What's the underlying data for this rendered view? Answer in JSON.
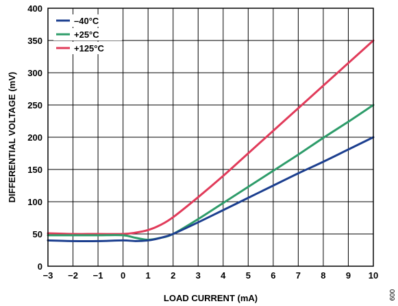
{
  "chart_data": {
    "type": "line",
    "xlabel": "LOAD CURRENT (mA)",
    "ylabel": "DIFFERENTIAL VOLTAGE (mV)",
    "xlim": [
      -3,
      10
    ],
    "ylim": [
      0,
      400
    ],
    "x_ticks": [
      -3,
      -2,
      -1,
      0,
      1,
      2,
      3,
      4,
      5,
      6,
      7,
      8,
      9,
      10
    ],
    "x_tick_labels": [
      "−3",
      "−2",
      "−1",
      "0",
      "1",
      "2",
      "3",
      "4",
      "5",
      "6",
      "7",
      "8",
      "9",
      "10"
    ],
    "y_ticks": [
      0,
      50,
      100,
      150,
      200,
      250,
      300,
      350,
      400
    ],
    "grid": true,
    "legend_position": "top-left",
    "figure_id": "009",
    "series": [
      {
        "name": "–40°C",
        "color": "#1c3f8f",
        "x": [
          -3,
          -2,
          -1,
          0,
          0.5,
          1,
          1.3,
          1.6,
          2,
          3,
          4,
          5,
          6,
          7,
          8,
          9,
          10
        ],
        "y": [
          40,
          39,
          39,
          40,
          39,
          40,
          42,
          45,
          50,
          68,
          87,
          106,
          125,
          144,
          162,
          181,
          200
        ]
      },
      {
        "name": "+25°C",
        "color": "#2e9c6a",
        "x": [
          -3,
          -2,
          -1,
          0,
          0.5,
          1,
          1.5,
          2,
          3,
          4,
          5,
          6,
          7,
          8,
          9,
          10
        ],
        "y": [
          48,
          48,
          48,
          48,
          44,
          41,
          44,
          50,
          73,
          98,
          123,
          148,
          173,
          199,
          224,
          250
        ]
      },
      {
        "name": "+125°C",
        "color": "#e13b5a",
        "x": [
          -3,
          -2,
          -1,
          0,
          0.5,
          1,
          1.5,
          2,
          3,
          4,
          5,
          6,
          7,
          8,
          9,
          10
        ],
        "y": [
          51,
          50,
          50,
          50,
          52,
          56,
          64,
          76,
          107,
          140,
          175,
          210,
          245,
          280,
          315,
          350
        ]
      }
    ]
  }
}
